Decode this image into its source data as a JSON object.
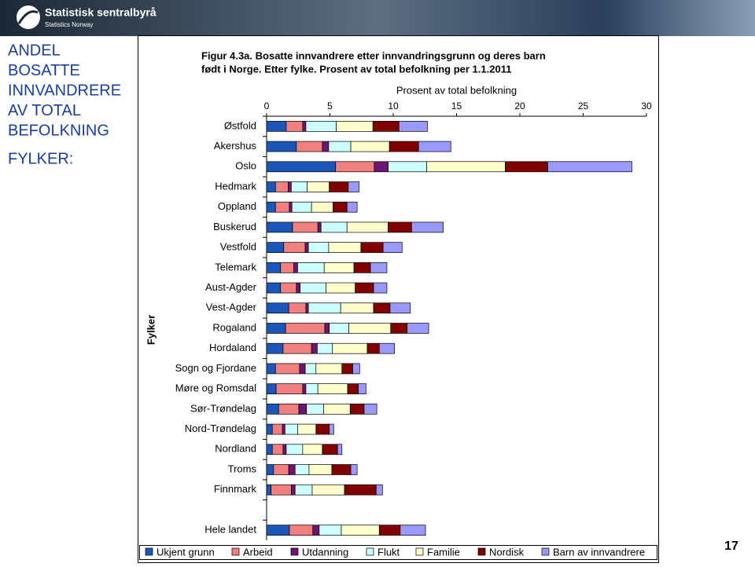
{
  "header": {
    "logo_name": "Statistisk sentralbyrå",
    "logo_sub": "Statistics Norway"
  },
  "sidebar": {
    "title_lines": [
      "ANDEL",
      "BOSATTE",
      "INNVANDRERE",
      "AV TOTAL",
      "BEFOLKNING"
    ],
    "subtitle": "FYLKER:"
  },
  "page_number": 17,
  "chart_data": {
    "type": "bar",
    "orientation": "horizontal",
    "stacked": true,
    "title": [
      "Figur 4.3a. Bosatte innvandrere etter innvandringsgrunn og deres barn",
      "født i Norge. Etter fylke. Prosent av total befolkning per 1.1.2011"
    ],
    "x_label": "Prosent av total befolkning",
    "y_label": "Fylker",
    "xlim": [
      0,
      30
    ],
    "xticks": [
      0,
      5,
      10,
      15,
      20,
      25,
      30
    ],
    "categories": [
      "Østfold",
      "Akershus",
      "Oslo",
      "Hedmark",
      "Oppland",
      "Buskerud",
      "Vestfold",
      "Telemark",
      "Aust-Agder",
      "Vest-Agder",
      "Rogaland",
      "Hordaland",
      "Sogn og Fjordane",
      "Møre og Romsdal",
      "Sør-Trøndelag",
      "Nord-Trøndelag",
      "Nordland",
      "Troms",
      "Finnmark",
      null,
      "Hele landet"
    ],
    "series": [
      {
        "name": "Ukjent grunn",
        "color": "#1c56b8",
        "values": [
          1.55,
          2.35,
          5.45,
          0.7,
          0.7,
          2.05,
          1.35,
          1.1,
          1.1,
          1.75,
          1.5,
          1.3,
          0.7,
          0.75,
          0.95,
          0.45,
          0.45,
          0.55,
          0.35,
          null,
          1.8
        ]
      },
      {
        "name": "Arbeid",
        "color": "#f08080",
        "values": [
          1.3,
          2.05,
          3.05,
          1.0,
          1.1,
          2.0,
          1.7,
          1.05,
          1.25,
          1.35,
          3.1,
          2.25,
          1.9,
          2.1,
          1.6,
          0.8,
          0.85,
          1.2,
          1.6,
          null,
          1.85
        ]
      },
      {
        "name": "Utdanning",
        "color": "#6b1670",
        "values": [
          0.25,
          0.5,
          1.1,
          0.25,
          0.2,
          0.25,
          0.25,
          0.3,
          0.3,
          0.2,
          0.35,
          0.45,
          0.45,
          0.25,
          0.6,
          0.2,
          0.25,
          0.5,
          0.3,
          null,
          0.5
        ]
      },
      {
        "name": "Flukt",
        "color": "#ccffff",
        "values": [
          2.4,
          1.75,
          3.05,
          1.25,
          1.55,
          2.05,
          1.6,
          2.1,
          2.05,
          2.55,
          1.55,
          1.2,
          0.85,
          0.95,
          1.35,
          1.0,
          1.3,
          1.1,
          1.35,
          null,
          1.75
        ]
      },
      {
        "name": "Familie",
        "color": "#ffffcc",
        "values": [
          2.9,
          3.05,
          6.2,
          1.75,
          1.7,
          3.25,
          2.55,
          2.35,
          2.3,
          2.6,
          3.3,
          2.75,
          2.05,
          2.35,
          2.1,
          1.45,
          1.55,
          1.8,
          2.55,
          null,
          3.0
        ]
      },
      {
        "name": "Nordisk",
        "color": "#800000",
        "values": [
          2.05,
          2.3,
          3.35,
          1.5,
          1.1,
          1.85,
          1.75,
          1.3,
          1.45,
          1.3,
          1.3,
          0.95,
          0.85,
          0.85,
          1.1,
          1.05,
          1.2,
          1.5,
          2.5,
          null,
          1.65
        ]
      },
      {
        "name": "Barn av innvandrere",
        "color": "#9999ff",
        "values": [
          2.25,
          2.55,
          6.65,
          0.85,
          0.8,
          2.5,
          1.5,
          1.3,
          1.05,
          1.6,
          1.7,
          1.2,
          0.55,
          0.6,
          1.0,
          0.35,
          0.35,
          0.5,
          0.5,
          null,
          2.0
        ]
      }
    ]
  }
}
